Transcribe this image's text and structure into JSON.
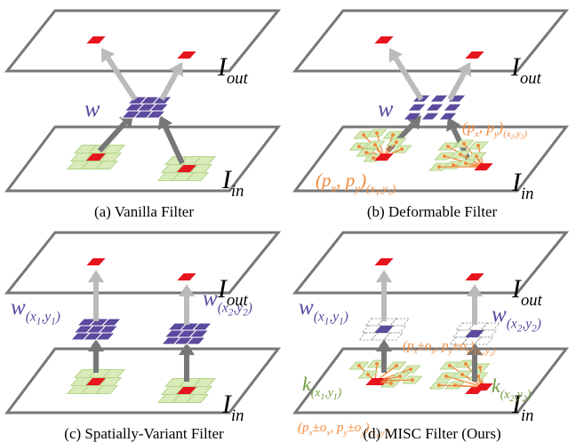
{
  "panels": [
    {
      "caption": "(a) Vanilla Filter",
      "labels": [
        {
          "parts": [
            "I",
            "out"
          ],
          "levels": [
            0,
            1
          ]
        },
        {
          "parts": [
            "I",
            "in"
          ],
          "levels": [
            0,
            1
          ]
        },
        {
          "parts": [
            "w"
          ],
          "levels": [
            0
          ]
        }
      ]
    },
    {
      "caption": "(b) Deformable Filter",
      "labels": [
        {
          "parts": [
            "I",
            "out"
          ],
          "levels": [
            0,
            1
          ]
        },
        {
          "parts": [
            "I",
            "in"
          ],
          "levels": [
            0,
            1
          ]
        },
        {
          "parts": [
            "w"
          ],
          "levels": [
            0
          ]
        },
        {
          "parts": [
            "(p",
            "x",
            ", p",
            "y",
            ")",
            "(x",
            "2",
            ",y",
            "2",
            ")"
          ],
          "levels": [
            0,
            1,
            0,
            1,
            0,
            1,
            2,
            1,
            2,
            1
          ]
        },
        {
          "parts": [
            "(p",
            "x",
            ", p",
            "y",
            ")",
            "(x",
            "1",
            ",y",
            "1",
            ")"
          ],
          "levels": [
            0,
            1,
            0,
            1,
            0,
            1,
            2,
            1,
            2,
            1
          ]
        }
      ]
    },
    {
      "caption": "(c) Spatially-Variant Filter",
      "labels": [
        {
          "parts": [
            "I",
            "out"
          ],
          "levels": [
            0,
            1
          ]
        },
        {
          "parts": [
            "I",
            "in"
          ],
          "levels": [
            0,
            1
          ]
        },
        {
          "parts": [
            "w",
            "(x",
            "1",
            ",y",
            "1",
            ")"
          ],
          "levels": [
            0,
            1,
            2,
            1,
            2,
            1
          ]
        },
        {
          "parts": [
            "w",
            "(x",
            "2",
            ",y",
            "2",
            ")"
          ],
          "levels": [
            0,
            1,
            2,
            1,
            2,
            1
          ]
        }
      ]
    },
    {
      "caption": "(d) MISC Filter (Ours)",
      "labels": [
        {
          "parts": [
            "I",
            "out"
          ],
          "levels": [
            0,
            1
          ]
        },
        {
          "parts": [
            "I",
            "in"
          ],
          "levels": [
            0,
            1
          ]
        },
        {
          "parts": [
            "w",
            "(x",
            "1",
            ",y",
            "1",
            ")"
          ],
          "levels": [
            0,
            1,
            2,
            1,
            2,
            1
          ]
        },
        {
          "parts": [
            "w",
            "(x",
            "2",
            ",y",
            "2",
            ")"
          ],
          "levels": [
            0,
            1,
            2,
            1,
            2,
            1
          ]
        },
        {
          "parts": [
            "k",
            "(x",
            "1",
            ",y",
            "1",
            ")"
          ],
          "levels": [
            0,
            1,
            2,
            1,
            2,
            1
          ]
        },
        {
          "parts": [
            "k",
            "(x",
            "2",
            ",y",
            "2",
            ")"
          ],
          "levels": [
            0,
            1,
            2,
            1,
            2,
            1
          ]
        },
        {
          "parts": [
            "(p",
            "x",
            "±o",
            "x",
            ", p",
            "y",
            "±o",
            "y",
            ")",
            "(x",
            "2",
            ",y",
            "2",
            ")"
          ],
          "levels": [
            0,
            1,
            0,
            1,
            0,
            1,
            0,
            1,
            0,
            1,
            2,
            1,
            2,
            1
          ]
        },
        {
          "parts": [
            "(p",
            "x",
            "±o",
            "x",
            ", p",
            "y",
            "±o",
            "y",
            ")",
            "(x",
            "1",
            ",y",
            "1",
            ")"
          ],
          "levels": [
            0,
            1,
            0,
            1,
            0,
            1,
            0,
            1,
            0,
            1,
            2,
            1,
            2,
            1
          ]
        }
      ]
    }
  ]
}
